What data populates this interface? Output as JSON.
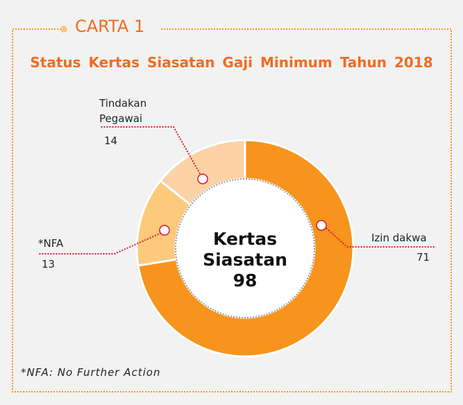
{
  "chart_data": {
    "type": "donut",
    "header": "CARTA 1",
    "title": "Status Kertas Siasatan Gaji Minimum Tahun 2018",
    "categories": [
      "Izin dakwa",
      "*NFA",
      "Tindakan Pegawai"
    ],
    "values": [
      71,
      13,
      14
    ],
    "colors": [
      "#f7941d",
      "#fdc97b",
      "#fcd3a6"
    ],
    "center_label": "Kertas Siasatan",
    "total": 98,
    "footnote": "*NFA: No Further Action"
  }
}
